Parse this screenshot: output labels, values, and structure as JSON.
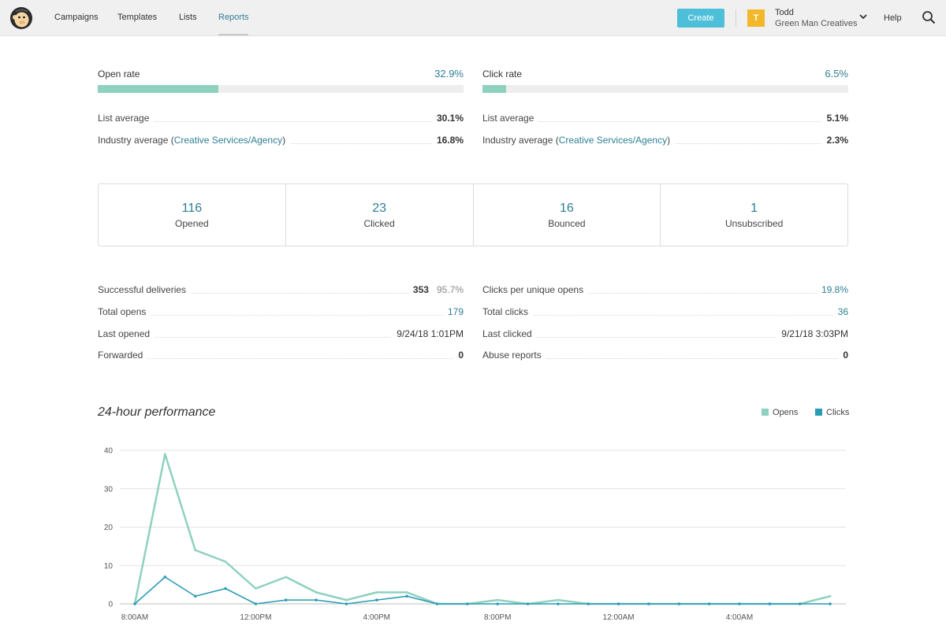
{
  "nav": {
    "items": [
      {
        "label": "Campaigns",
        "active": false
      },
      {
        "label": "Templates",
        "active": false
      },
      {
        "label": "Lists",
        "active": false
      },
      {
        "label": "Reports",
        "active": true
      }
    ],
    "create_label": "Create",
    "account": {
      "initial": "T",
      "name": "Todd",
      "org": "Green Man Creatives"
    },
    "help_label": "Help"
  },
  "open_rate": {
    "label": "Open rate",
    "value": "32.9%",
    "fraction": 0.329,
    "list_average_label": "List average",
    "list_average": "30.1%",
    "industry_prefix": "Industry average (",
    "industry_link": "Creative Services/Agency",
    "industry_suffix": ")",
    "industry_average": "16.8%"
  },
  "click_rate": {
    "label": "Click rate",
    "value": "6.5%",
    "fraction": 0.065,
    "list_average_label": "List average",
    "list_average": "5.1%",
    "industry_prefix": "Industry average (",
    "industry_link": "Creative Services/Agency",
    "industry_suffix": ")",
    "industry_average": "2.3%"
  },
  "stats": [
    {
      "value": "116",
      "label": "Opened"
    },
    {
      "value": "23",
      "label": "Clicked"
    },
    {
      "value": "16",
      "label": "Bounced"
    },
    {
      "value": "1",
      "label": "Unsubscribed"
    }
  ],
  "details_left": [
    {
      "label": "Successful deliveries",
      "value": "353",
      "extra": "95.7%"
    },
    {
      "label": "Total opens",
      "value": "179",
      "teal": true
    },
    {
      "label": "Last opened",
      "value": "9/24/18 1:01PM"
    },
    {
      "label": "Forwarded",
      "value": "0"
    }
  ],
  "details_right": [
    {
      "label": "Clicks per unique opens",
      "value": "19.8%",
      "teal": true
    },
    {
      "label": "Total clicks",
      "value": "36",
      "teal": true
    },
    {
      "label": "Last clicked",
      "value": "9/21/18 3:03PM"
    },
    {
      "label": "Abuse reports",
      "value": "0"
    }
  ],
  "chart_title": "24-hour performance",
  "colors": {
    "opens": "#8ed1bf",
    "clicks": "#2a9bb5",
    "accent": "#2f7f93"
  },
  "chart_data": {
    "type": "line",
    "title": "24-hour performance",
    "xlabel": "",
    "ylabel": "",
    "ylim": [
      0,
      40
    ],
    "yticks": [
      0,
      10,
      20,
      30,
      40
    ],
    "x_tick_labels": [
      "8:00AM",
      "12:00PM",
      "4:00PM",
      "8:00PM",
      "12:00AM",
      "4:00AM"
    ],
    "x_tick_positions": [
      0,
      4,
      8,
      12,
      16,
      20
    ],
    "grid": true,
    "legend_position": "top-right",
    "series": [
      {
        "name": "Opens",
        "values": [
          0,
          39,
          14,
          11,
          4,
          7,
          3,
          1,
          3,
          3,
          0,
          0,
          1,
          0,
          1,
          0,
          0,
          0,
          0,
          0,
          0,
          0,
          0,
          2
        ]
      },
      {
        "name": "Clicks",
        "values": [
          0,
          7,
          2,
          4,
          0,
          1,
          1,
          0,
          1,
          2,
          0,
          0,
          0,
          0,
          0,
          0,
          0,
          0,
          0,
          0,
          0,
          0,
          0,
          0
        ]
      }
    ]
  }
}
